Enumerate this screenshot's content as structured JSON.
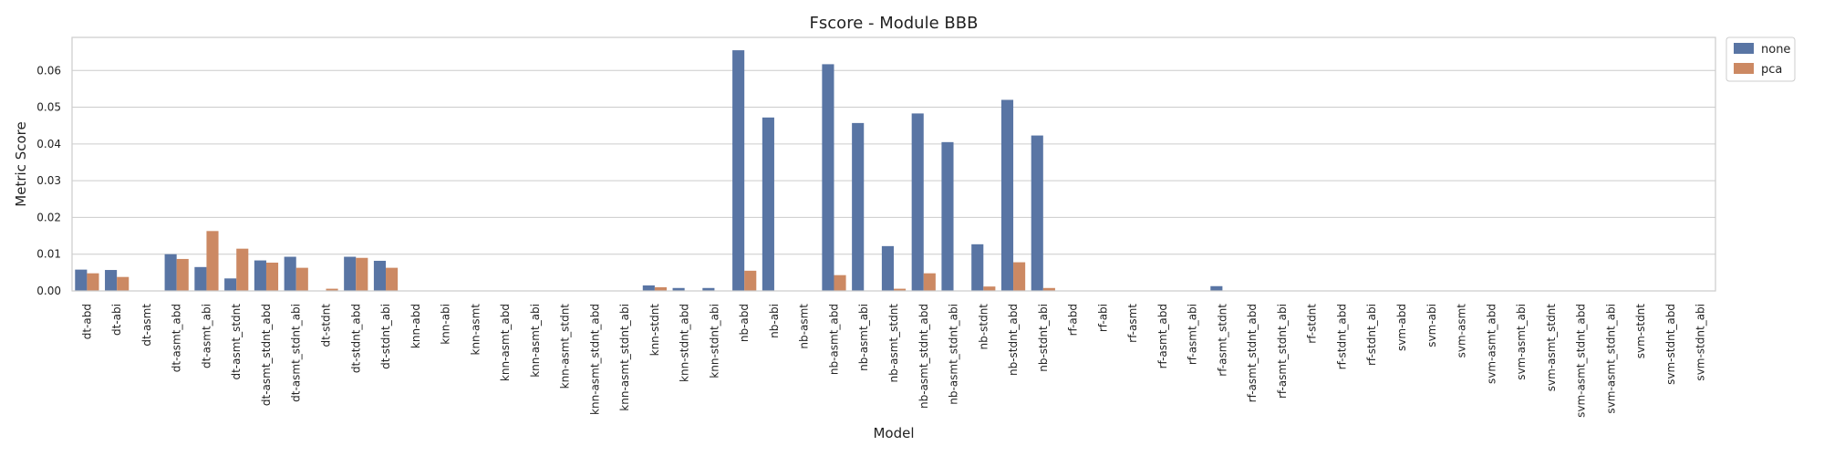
{
  "chart_data": {
    "type": "bar",
    "title": "Fscore - Module BBB",
    "xlabel": "Model",
    "ylabel": "Metric Score",
    "ylim": [
      0,
      0.069
    ],
    "yticks": [
      "0.00",
      "0.01",
      "0.02",
      "0.03",
      "0.04",
      "0.05",
      "0.06"
    ],
    "grid": "horizontal",
    "legend_position": "outside top-right",
    "categories": [
      "dt-abd",
      "dt-abi",
      "dt-asmt",
      "dt-asmt_abd",
      "dt-asmt_abi",
      "dt-asmt_stdnt",
      "dt-asmt_stdnt_abd",
      "dt-asmt_stdnt_abi",
      "dt-stdnt",
      "dt-stdnt_abd",
      "dt-stdnt_abi",
      "knn-abd",
      "knn-abi",
      "knn-asmt",
      "knn-asmt_abd",
      "knn-asmt_abi",
      "knn-asmt_stdnt",
      "knn-asmt_stdnt_abd",
      "knn-asmt_stdnt_abi",
      "knn-stdnt",
      "knn-stdnt_abd",
      "knn-stdnt_abi",
      "nb-abd",
      "nb-abi",
      "nb-asmt",
      "nb-asmt_abd",
      "nb-asmt_abi",
      "nb-asmt_stdnt",
      "nb-asmt_stdnt_abd",
      "nb-asmt_stdnt_abi",
      "nb-stdnt",
      "nb-stdnt_abd",
      "nb-stdnt_abi",
      "rf-abd",
      "rf-abi",
      "rf-asmt",
      "rf-asmt_abd",
      "rf-asmt_abi",
      "rf-asmt_stdnt",
      "rf-asmt_stdnt_abd",
      "rf-asmt_stdnt_abi",
      "rf-stdnt",
      "rf-stdnt_abd",
      "rf-stdnt_abi",
      "svm-abd",
      "svm-abi",
      "svm-asmt",
      "svm-asmt_abd",
      "svm-asmt_abi",
      "svm-asmt_stdnt",
      "svm-asmt_stdnt_abd",
      "svm-asmt_stdnt_abi",
      "svm-stdnt",
      "svm-stdnt_abd",
      "svm-stdnt_abi"
    ],
    "series": [
      {
        "name": "none",
        "color": "#5975a4",
        "values": [
          0.0058,
          0.0057,
          0.0,
          0.01,
          0.0065,
          0.0034,
          0.0083,
          0.0093,
          0.0,
          0.0093,
          0.0082,
          0.0,
          0.0,
          0.0,
          0.0,
          0.0,
          0.0,
          0.0,
          0.0,
          0.0015,
          0.0008,
          0.0008,
          0.0655,
          0.0472,
          0.0,
          0.0617,
          0.0457,
          0.0122,
          0.0483,
          0.0405,
          0.0127,
          0.052,
          0.0423,
          0.0,
          0.0,
          0.0,
          0.0,
          0.0,
          0.0013,
          0.0,
          0.0,
          0.0,
          0.0,
          0.0,
          0.0,
          0.0,
          0.0,
          0.0,
          0.0,
          0.0,
          0.0,
          0.0,
          0.0,
          0.0,
          0.0
        ]
      },
      {
        "name": "pca",
        "color": "#cc8963",
        "values": [
          0.0048,
          0.0038,
          0.0,
          0.0087,
          0.0163,
          0.0115,
          0.0077,
          0.0063,
          0.0006,
          0.009,
          0.0063,
          0.0,
          0.0,
          0.0,
          0.0,
          0.0,
          0.0,
          0.0,
          0.0,
          0.001,
          0.0,
          0.0,
          0.0055,
          0.0,
          0.0,
          0.0043,
          0.0,
          0.0006,
          0.0048,
          0.0,
          0.0012,
          0.0078,
          0.0008,
          0.0,
          0.0,
          0.0,
          0.0,
          0.0,
          0.0,
          0.0,
          0.0,
          0.0,
          0.0,
          0.0,
          0.0,
          0.0,
          0.0,
          0.0,
          0.0,
          0.0,
          0.0,
          0.0,
          0.0,
          0.0,
          0.0
        ]
      }
    ]
  }
}
